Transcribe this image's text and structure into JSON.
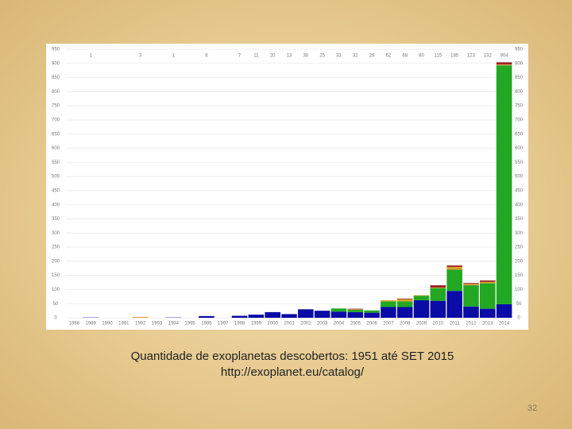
{
  "chart_data": {
    "type": "bar",
    "stacked": true,
    "categories": [
      "1988",
      "1989",
      "1990",
      "1991",
      "1992",
      "1993",
      "1994",
      "1995",
      "1996",
      "1997",
      "1998",
      "1999",
      "2000",
      "2001",
      "2002",
      "2003",
      "2004",
      "2005",
      "2006",
      "2007",
      "2008",
      "2009",
      "2010",
      "2011",
      "2012",
      "2013",
      "2014"
    ],
    "series": [
      {
        "color": "#0b0ba6",
        "values": [
          0,
          1,
          0,
          0,
          0,
          0,
          1,
          0,
          6,
          0,
          7,
          11,
          20,
          13,
          30,
          25,
          22,
          20,
          18,
          38,
          38,
          62,
          60,
          95,
          40,
          32,
          48
        ]
      },
      {
        "color": "#22a822",
        "values": [
          0,
          0,
          0,
          0,
          0,
          0,
          0,
          0,
          0,
          0,
          0,
          0,
          0,
          0,
          0,
          0,
          11,
          8,
          8,
          20,
          20,
          16,
          45,
          75,
          75,
          90,
          845
        ]
      },
      {
        "color": "#d9a030",
        "values": [
          0,
          0,
          0,
          0,
          3,
          0,
          0,
          0,
          0,
          0,
          0,
          0,
          0,
          0,
          0,
          0,
          0,
          2,
          0,
          4,
          8,
          2,
          2,
          10,
          5,
          5,
          3
        ]
      },
      {
        "color": "#992222",
        "values": [
          0,
          0,
          0,
          0,
          0,
          0,
          0,
          0,
          0,
          0,
          0,
          0,
          0,
          0,
          0,
          0,
          0,
          2,
          0,
          0,
          2,
          0,
          8,
          5,
          3,
          5,
          8
        ]
      }
    ],
    "totals": [
      null,
      1,
      null,
      null,
      3,
      null,
      1,
      null,
      6,
      null,
      7,
      11,
      20,
      13,
      30,
      25,
      33,
      32,
      26,
      62,
      68,
      80,
      115,
      185,
      123,
      132,
      904
    ],
    "ylim": [
      0,
      950
    ],
    "yticks": [
      0,
      50,
      100,
      150,
      200,
      250,
      300,
      350,
      400,
      450,
      500,
      550,
      600,
      650,
      700,
      750,
      800,
      850,
      900,
      950
    ],
    "grid": true
  },
  "caption": [
    "Quantidade de exoplanetas descobertos: 1951 até SET 2015",
    "http://exoplanet.eu/catalog/"
  ],
  "page_number": "32"
}
